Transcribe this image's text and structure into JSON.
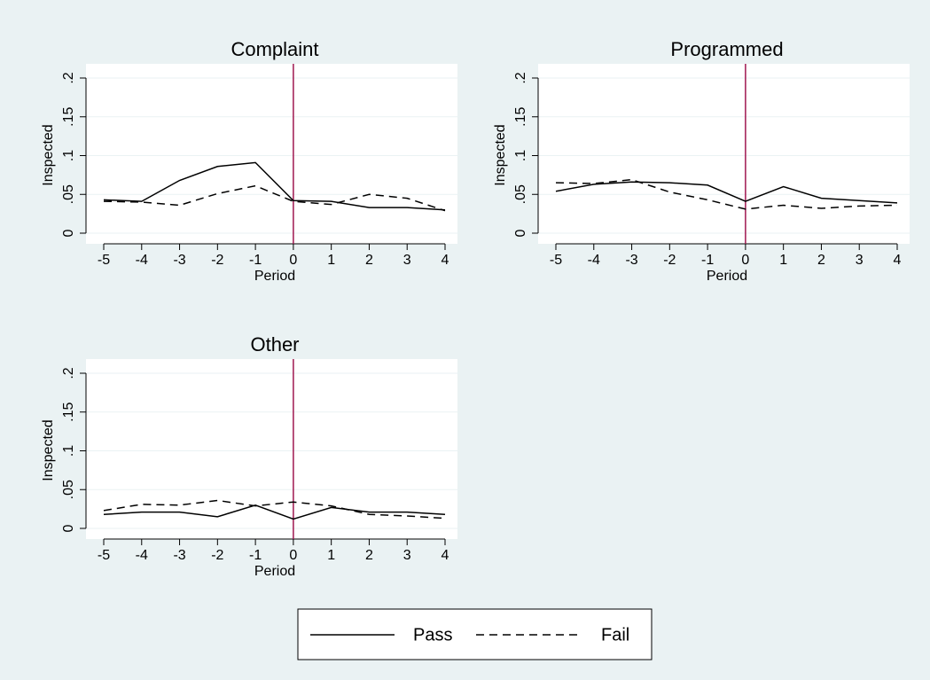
{
  "chart_data": [
    {
      "type": "line",
      "title": "Complaint",
      "x_label": "Period",
      "y_label": "Inspected",
      "x": [
        -5,
        -4,
        -3,
        -2,
        -1,
        0,
        1,
        2,
        3,
        4
      ],
      "series": [
        {
          "name": "Pass",
          "color": "#000000",
          "dash": "solid",
          "values": [
            0.043,
            0.041,
            0.068,
            0.086,
            0.091,
            0.042,
            0.041,
            0.033,
            0.033,
            0.03
          ]
        },
        {
          "name": "Fail",
          "color": "#000000",
          "dash": "dashed",
          "values": [
            0.041,
            0.04,
            0.036,
            0.051,
            0.061,
            0.041,
            0.037,
            0.05,
            0.045,
            0.029
          ]
        }
      ],
      "xlim": [
        -5,
        4
      ],
      "ylim": [
        0,
        0.2
      ],
      "xticks": [
        -5,
        -4,
        -3,
        -2,
        -1,
        0,
        1,
        2,
        3,
        4
      ],
      "yticks": [
        0,
        {
          "value": 0.05,
          "label": ".05"
        },
        {
          "value": 0.1,
          "label": ".1"
        },
        {
          "value": 0.15,
          "label": ".15"
        },
        {
          "value": 0.2,
          "label": ".2"
        }
      ],
      "vline": 0,
      "vline_color": "#a0174f",
      "grid": true
    },
    {
      "type": "line",
      "title": "Programmed",
      "x_label": "Period",
      "y_label": "Inspected",
      "x": [
        -5,
        -4,
        -3,
        -2,
        -1,
        0,
        1,
        2,
        3,
        4
      ],
      "series": [
        {
          "name": "Pass",
          "color": "#000000",
          "dash": "solid",
          "values": [
            0.054,
            0.063,
            0.066,
            0.065,
            0.062,
            0.041,
            0.06,
            0.045,
            0.042,
            0.039
          ]
        },
        {
          "name": "Fail",
          "color": "#000000",
          "dash": "dashed",
          "values": [
            0.065,
            0.064,
            0.069,
            0.053,
            0.043,
            0.031,
            0.036,
            0.032,
            0.035,
            0.036
          ]
        }
      ],
      "xlim": [
        -5,
        4
      ],
      "ylim": [
        0,
        0.2
      ],
      "xticks": [
        -5,
        -4,
        -3,
        -2,
        -1,
        0,
        1,
        2,
        3,
        4
      ],
      "yticks": [
        0,
        {
          "value": 0.05,
          "label": ".05"
        },
        {
          "value": 0.1,
          "label": ".1"
        },
        {
          "value": 0.15,
          "label": ".15"
        },
        {
          "value": 0.2,
          "label": ".2"
        }
      ],
      "vline": 0,
      "vline_color": "#a0174f",
      "grid": true
    },
    {
      "type": "line",
      "title": "Other",
      "x_label": "Period",
      "y_label": "Inspected",
      "x": [
        -5,
        -4,
        -3,
        -2,
        -1,
        0,
        1,
        2,
        3,
        4
      ],
      "series": [
        {
          "name": "Pass",
          "color": "#000000",
          "dash": "solid",
          "values": [
            0.018,
            0.021,
            0.021,
            0.015,
            0.03,
            0.012,
            0.027,
            0.021,
            0.021,
            0.018
          ]
        },
        {
          "name": "Fail",
          "color": "#000000",
          "dash": "dashed",
          "values": [
            0.023,
            0.031,
            0.03,
            0.036,
            0.029,
            0.034,
            0.029,
            0.018,
            0.016,
            0.013
          ]
        }
      ],
      "xlim": [
        -5,
        4
      ],
      "ylim": [
        0,
        0.2
      ],
      "xticks": [
        -5,
        -4,
        -3,
        -2,
        -1,
        0,
        1,
        2,
        3,
        4
      ],
      "yticks": [
        0,
        {
          "value": 0.05,
          "label": ".05"
        },
        {
          "value": 0.1,
          "label": ".1"
        },
        {
          "value": 0.15,
          "label": ".15"
        },
        {
          "value": 0.2,
          "label": ".2"
        }
      ],
      "vline": 0,
      "vline_color": "#a0174f",
      "grid": true
    }
  ]
}
